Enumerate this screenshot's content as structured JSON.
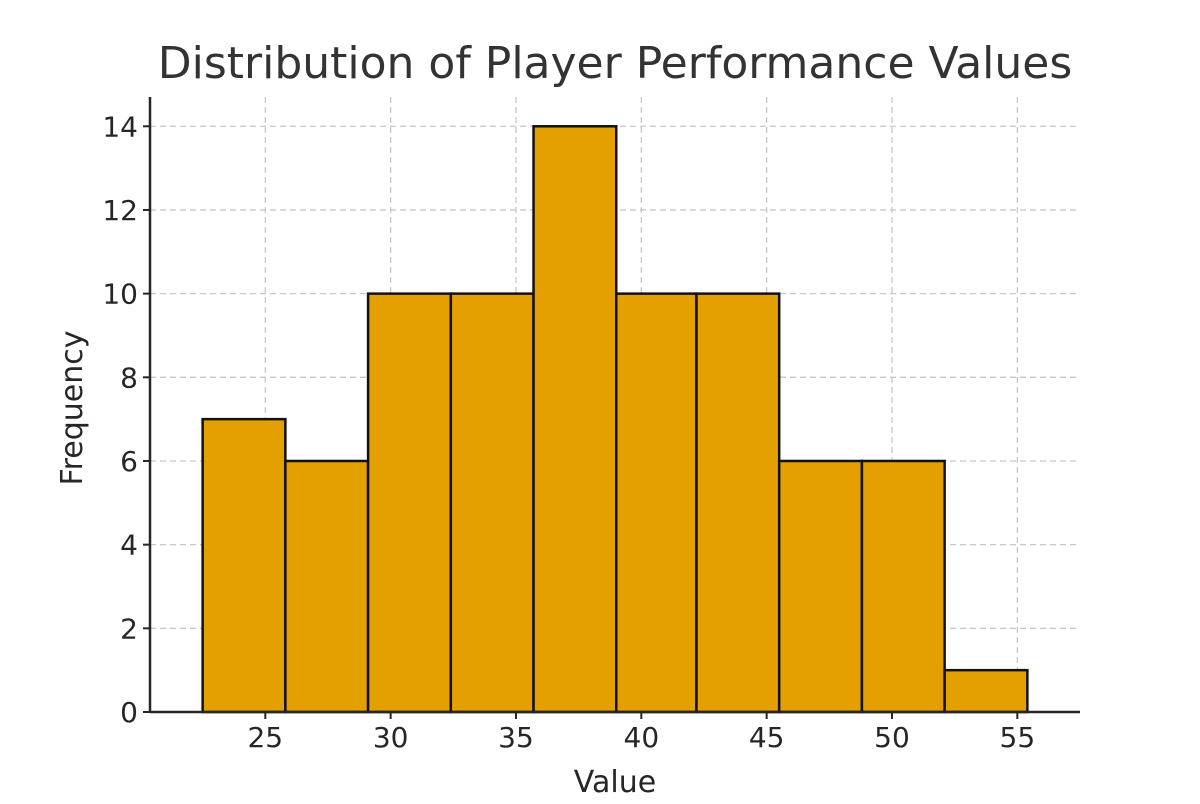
{
  "chart_data": {
    "type": "bar",
    "title": "Distribution of Player Performance Values",
    "xlabel": "Value",
    "ylabel": "Frequency",
    "bin_edges": [
      22.5,
      25.8,
      29.1,
      32.4,
      35.7,
      39.0,
      42.2,
      45.5,
      48.8,
      52.1,
      55.4
    ],
    "values": [
      7,
      6,
      10,
      10,
      14,
      10,
      10,
      6,
      6,
      1
    ],
    "xlim": [
      20.4,
      57.5
    ],
    "ylim": [
      0,
      14.7
    ],
    "xticks": [
      25,
      30,
      35,
      40,
      45,
      50,
      55
    ],
    "yticks": [
      0,
      2,
      4,
      6,
      8,
      10,
      12,
      14
    ],
    "grid": true,
    "bar_color": "#E4A000",
    "edge_color": "#111111"
  }
}
